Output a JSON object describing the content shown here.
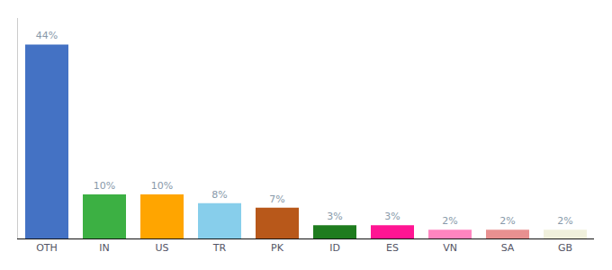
{
  "chart_data": {
    "type": "bar",
    "categories": [
      "OTH",
      "IN",
      "US",
      "TR",
      "PK",
      "ID",
      "ES",
      "VN",
      "SA",
      "GB"
    ],
    "values": [
      44,
      10,
      10,
      8,
      7,
      3,
      3,
      2,
      2,
      2
    ],
    "value_labels": [
      "44%",
      "10%",
      "10%",
      "8%",
      "7%",
      "3%",
      "3%",
      "2%",
      "2%",
      "2%"
    ],
    "colors": [
      "#4472c4",
      "#3cb043",
      "#ffa500",
      "#87ceeb",
      "#b8581a",
      "#1e7c1e",
      "#ff1493",
      "#ff85c0",
      "#e89090",
      "#f0f0dc"
    ],
    "ylim": [
      0,
      50
    ],
    "grid": false,
    "data_labels": true,
    "tick_labels": "x"
  }
}
